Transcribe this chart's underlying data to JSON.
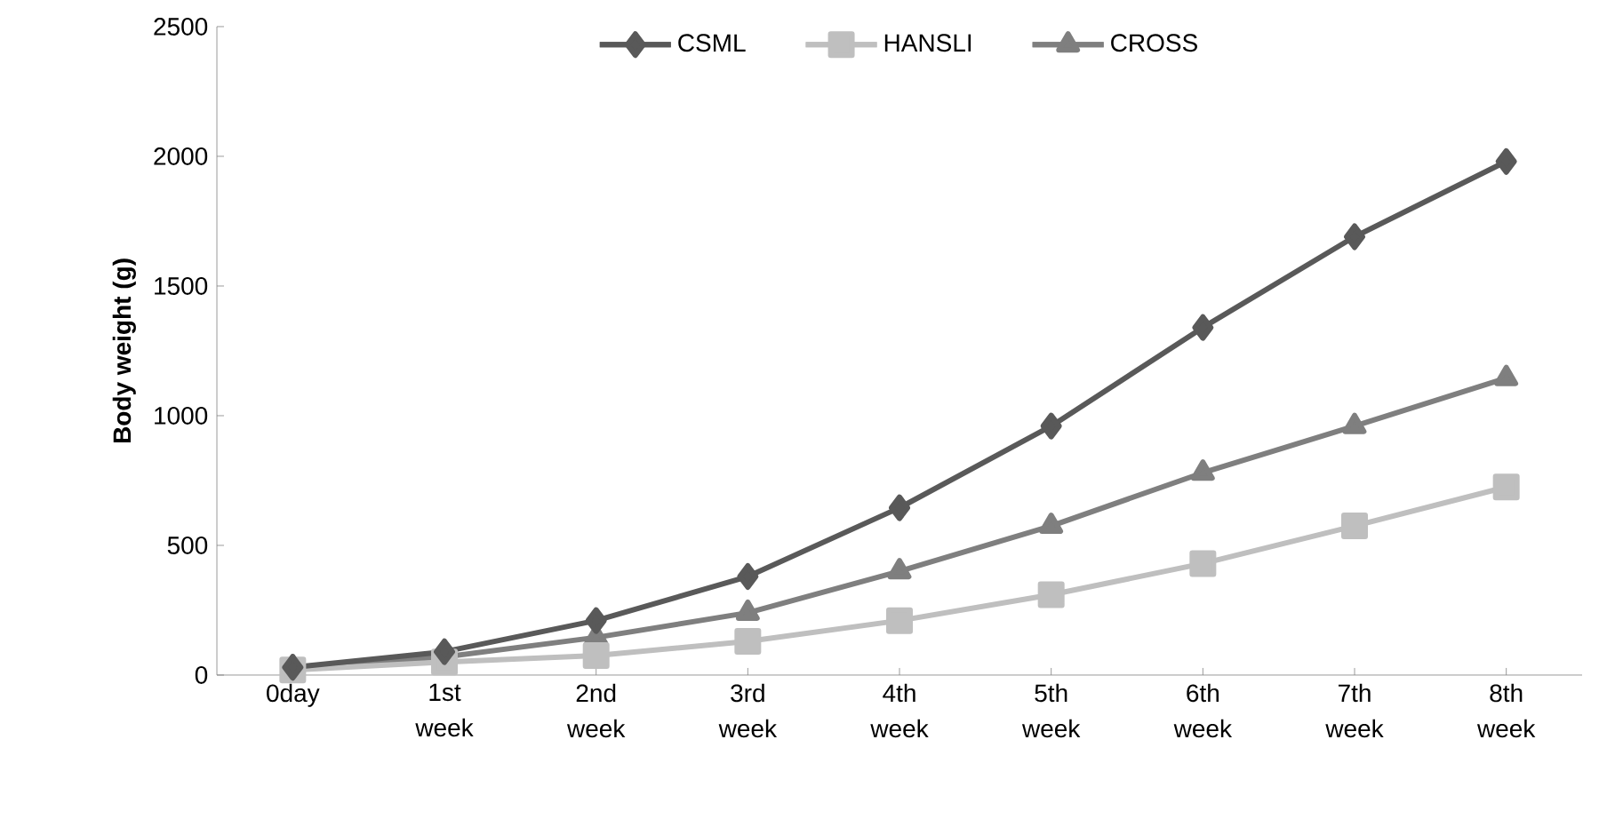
{
  "chart_data": {
    "type": "line",
    "ylabel": "Body weight (g)",
    "categories": [
      "0day",
      "1st week",
      "2nd week",
      "3rd week",
      "4th week",
      "5th week",
      "6th week",
      "7th week",
      "8th week"
    ],
    "series": [
      {
        "name": "CSML",
        "color": "#595959",
        "marker": "diamond",
        "values": [
          30,
          90,
          210,
          380,
          645,
          960,
          1340,
          1690,
          1980
        ]
      },
      {
        "name": "HANSLI",
        "color": "#bfbfbf",
        "marker": "square",
        "values": [
          20,
          50,
          75,
          130,
          210,
          310,
          430,
          575,
          725
        ]
      },
      {
        "name": "CROSS",
        "color": "#7f7f7f",
        "marker": "triangle",
        "values": [
          30,
          70,
          145,
          240,
          400,
          575,
          780,
          960,
          1145
        ]
      }
    ],
    "ylim": [
      0,
      2500
    ],
    "yticks": [
      0,
      500,
      1000,
      1500,
      2000,
      2500
    ],
    "grid": false,
    "legend": "top",
    "line_style": "solid"
  }
}
